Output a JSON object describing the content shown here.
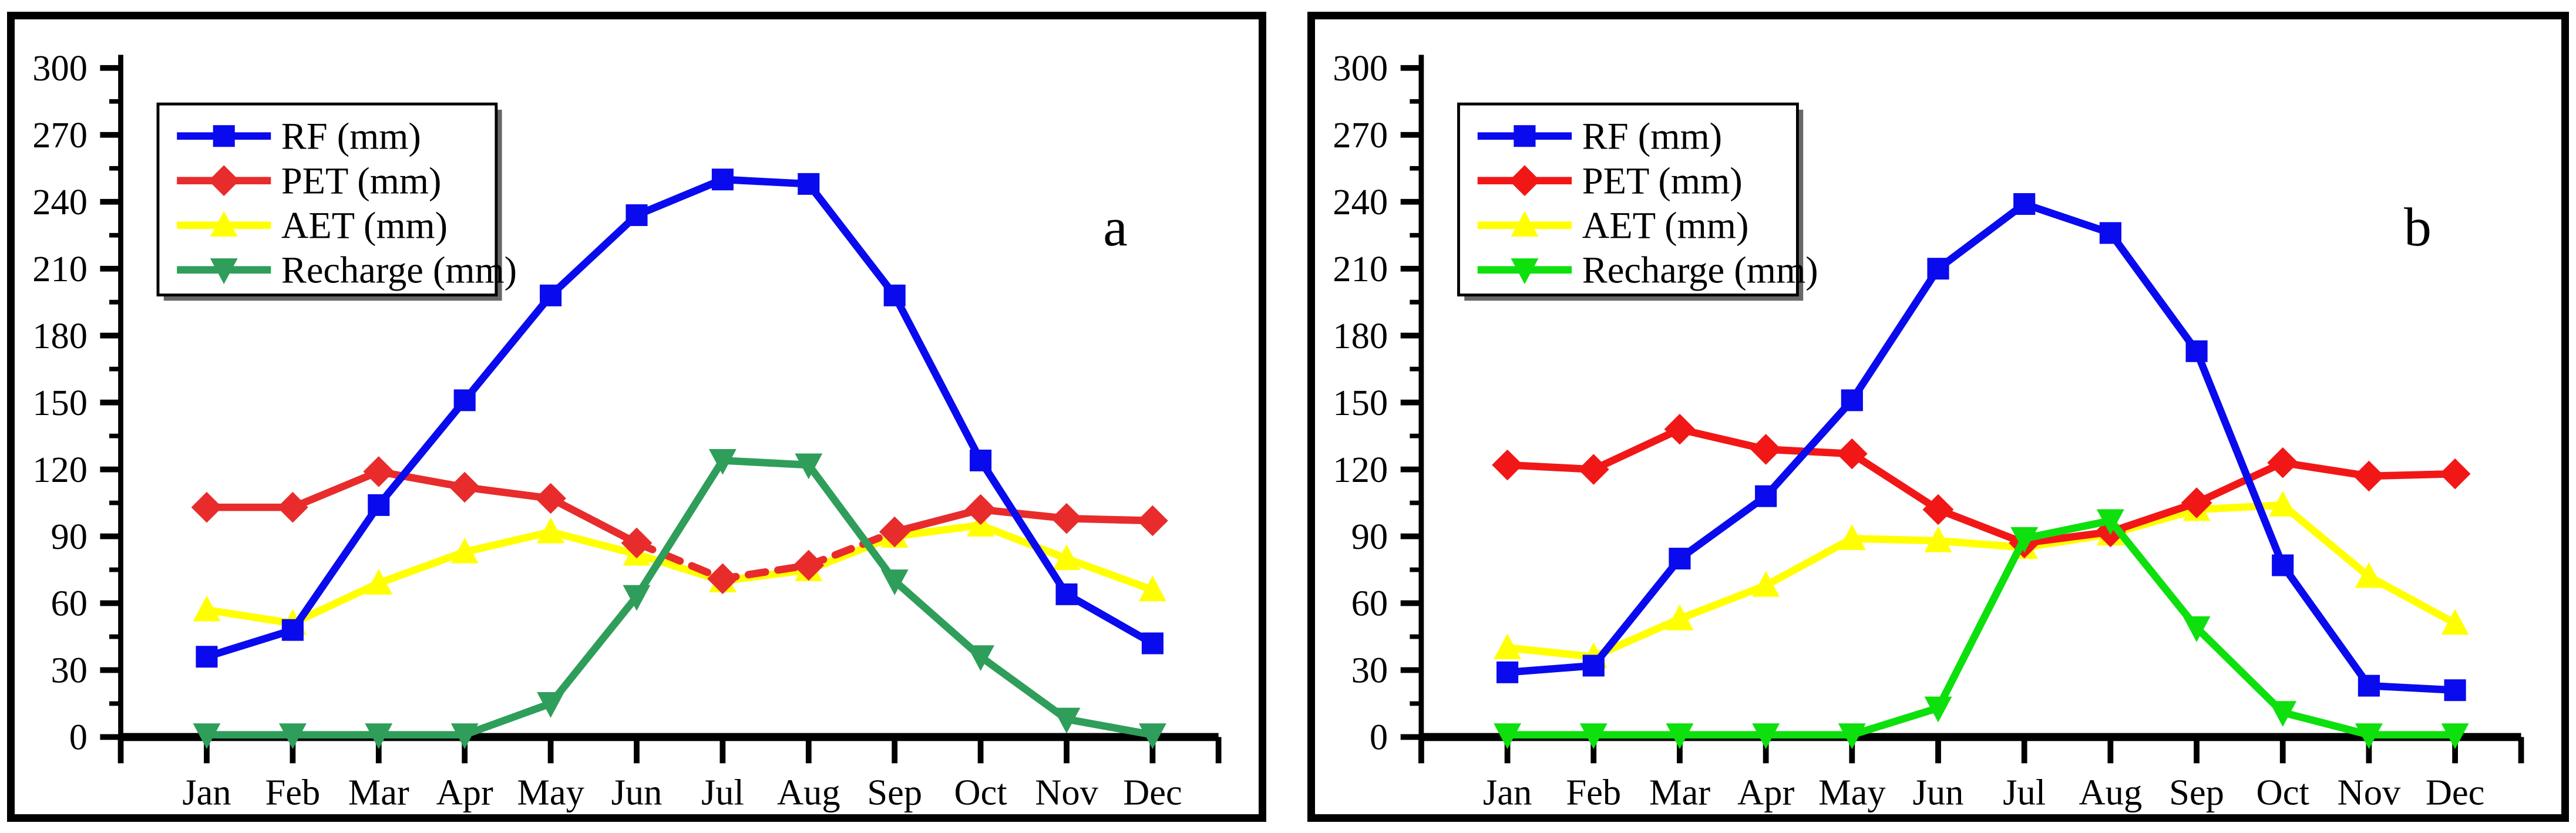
{
  "figure": {
    "background": "#ffffff",
    "text_color": "#000000",
    "axis_color": "#000000"
  },
  "chart_data": [
    {
      "type": "line",
      "panel_label": "a",
      "x_categories": [
        "Jan",
        "Feb",
        "Mar",
        "Apr",
        "May",
        "Jun",
        "Jul",
        "Aug",
        "Sep",
        "Oct",
        "Nov",
        "Dec"
      ],
      "ylim": [
        0,
        300
      ],
      "y_major_step": 30,
      "y_minor_step": 15,
      "y_tick_labels": [
        "0",
        "30",
        "60",
        "90",
        "120",
        "150",
        "180",
        "210",
        "240",
        "270",
        "300"
      ],
      "grid": false,
      "legend_position": "upper-left",
      "legend_entries": [
        "RF (mm)",
        "PET (mm)",
        "AET (mm)",
        "Recharge (mm)"
      ],
      "series": [
        {
          "name": "RF (mm)",
          "color": "#0a0aee",
          "marker": "square",
          "values": [
            36,
            48,
            104,
            151,
            198,
            234,
            250,
            248,
            198,
            124,
            64,
            42
          ]
        },
        {
          "name": "PET (mm)",
          "color": "#e82c2c",
          "marker": "diamond",
          "dash_between": [
            5,
            8
          ],
          "values": [
            103,
            103,
            119,
            112,
            107,
            87,
            71,
            77,
            92,
            102,
            98,
            97
          ]
        },
        {
          "name": "AET (mm)",
          "color": "#ffff00",
          "marker": "triangle-up",
          "values": [
            57,
            51,
            69,
            83,
            92,
            82,
            70,
            75,
            90,
            95,
            80,
            66
          ]
        },
        {
          "name": "Recharge (mm)",
          "color": "#2e9e5a",
          "marker": "triangle-down",
          "values": [
            1,
            1,
            1,
            1,
            15,
            63,
            124,
            122,
            70,
            36,
            8,
            1
          ]
        }
      ],
      "draw_order": [
        "AET (mm)",
        "PET (mm)",
        "Recharge (mm)",
        "RF (mm)"
      ]
    },
    {
      "type": "line",
      "panel_label": "b",
      "x_categories": [
        "Jan",
        "Feb",
        "Mar",
        "Apr",
        "May",
        "Jun",
        "Jul",
        "Aug",
        "Sep",
        "Oct",
        "Nov",
        "Dec"
      ],
      "ylim": [
        0,
        300
      ],
      "y_major_step": 30,
      "y_minor_step": 15,
      "y_tick_labels": [
        "0",
        "30",
        "60",
        "90",
        "120",
        "150",
        "180",
        "210",
        "240",
        "270",
        "300"
      ],
      "grid": false,
      "legend_position": "upper-left",
      "legend_entries": [
        "RF (mm)",
        "PET (mm)",
        "AET (mm)",
        "Recharge (mm)"
      ],
      "series": [
        {
          "name": "RF (mm)",
          "color": "#0a0aee",
          "marker": "square",
          "values": [
            29,
            32,
            80,
            108,
            151,
            210,
            239,
            226,
            173,
            77,
            23,
            21
          ]
        },
        {
          "name": "PET (mm)",
          "color": "#f21717",
          "marker": "diamond",
          "values": [
            122,
            120,
            138,
            129,
            127,
            102,
            87,
            92,
            105,
            123,
            117,
            118
          ]
        },
        {
          "name": "AET (mm)",
          "color": "#ffff00",
          "marker": "triangle-up",
          "values": [
            40,
            36,
            53,
            68,
            89,
            88,
            85,
            91,
            102,
            104,
            72,
            51
          ]
        },
        {
          "name": "Recharge (mm)",
          "color": "#0de00d",
          "marker": "triangle-down",
          "values": [
            1,
            1,
            1,
            1,
            1,
            13,
            89,
            97,
            49,
            11,
            1,
            1
          ]
        }
      ],
      "draw_order": [
        "AET (mm)",
        "PET (mm)",
        "Recharge (mm)",
        "RF (mm)"
      ]
    }
  ]
}
